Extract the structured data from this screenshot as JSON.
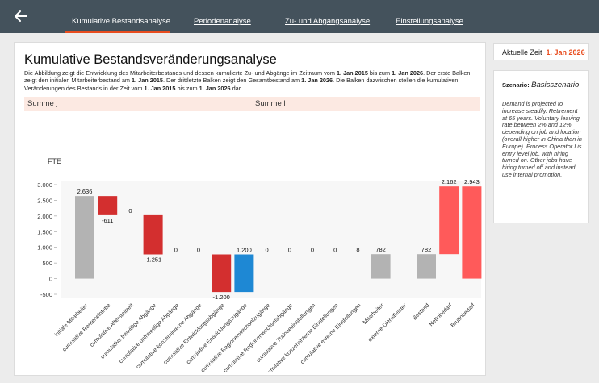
{
  "nav": {
    "tabs": [
      {
        "label": "Kumulative Bestandsanalyse",
        "active": true
      },
      {
        "label": "Periodenanalyse",
        "active": false
      },
      {
        "label": "Zu- und Abgangsanalyse",
        "active": false
      },
      {
        "label": "Einstellungsanalyse",
        "active": false
      }
    ]
  },
  "main": {
    "title": "Kumulative Bestandsveränderungsanalyse",
    "description_parts": [
      {
        "t": "Die Abbildung zeigt die Entwicklung des Mitarbeiterbestands und dessen kumulierte Zu- und Abgänge im Zeitraum vom ",
        "b": false
      },
      {
        "t": "1. Jan 2015",
        "b": true
      },
      {
        "t": " bis zum ",
        "b": false
      },
      {
        "t": "1. Jan 2026",
        "b": true
      },
      {
        "t": ". Der erste Balken zeigt den initialen Mitarbeiterbestand am ",
        "b": false
      },
      {
        "t": "1. Jan 2015",
        "b": true
      },
      {
        "t": ". Der drittletzte Balken zeigt den Gesamtbestand am ",
        "b": false
      },
      {
        "t": "1. Jan 2026",
        "b": true
      },
      {
        "t": ". Die Balken dazwischen stellen die kumulativen Veränderungen des Bestands in der Zeit vom ",
        "b": false
      },
      {
        "t": "1. Jan 2015",
        "b": true
      },
      {
        "t": " bis zum ",
        "b": false
      },
      {
        "t": "1. Jan 2026",
        "b": true
      },
      {
        "t": " dar.",
        "b": false
      }
    ],
    "sum_left": "Summe j",
    "sum_right": "Summe l"
  },
  "side": {
    "time_label": "Aktuelle Zeit",
    "time_value": "1. Jan 2026",
    "scenario_label": "Szenario:",
    "scenario_name": "Basisszenario",
    "scenario_text": "Demand is projected to increase steadily. Retirement at 65 years. Voluntary leaving rate between 2% and 12% depending on job and location (overall higher in China than in Europe). Process Operator I is entry level job, with hiring turned on. Other jobs have hiring turned off and instead use internal promotion."
  },
  "colors": {
    "gray": "#b3b3b3",
    "red": "#d32f2f",
    "blue": "#1e88d4",
    "salmon": "#ff5a5a",
    "accent": "#e84c1e"
  },
  "chart_data": {
    "type": "bar",
    "subtype": "waterfall",
    "ylabel": "FTE",
    "ylim": [
      -500,
      3000
    ],
    "yticks": [
      3000,
      2500,
      2000,
      1500,
      1000,
      500,
      0,
      -500
    ],
    "ytick_labels": [
      "3.000",
      "2.500",
      "2.000",
      "1.500",
      "1.000",
      "500",
      "0",
      "-500"
    ],
    "grid": false,
    "bars": [
      {
        "category": "initiale Mitarbeiter",
        "start": 0,
        "end": 2636,
        "label": "2.636",
        "color": "gray"
      },
      {
        "category": "cumulative Renteneintritte",
        "start": 2636,
        "end": 2025,
        "label": "-611",
        "color": "red"
      },
      {
        "category": "cumulative Altersteilzeit",
        "start": 2025,
        "end": 2025,
        "label": "0",
        "color": "red"
      },
      {
        "category": "cumulative freiwillige Abgänge",
        "start": 2025,
        "end": 774,
        "label": "-1.251",
        "color": "red"
      },
      {
        "category": "cumulative unfreiwillige Abgänge",
        "start": 774,
        "end": 774,
        "label": "0",
        "color": "red"
      },
      {
        "category": "cumulative konzerninterne Abgänge",
        "start": 774,
        "end": 774,
        "label": "0",
        "color": "red"
      },
      {
        "category": "cumulative Entwicklungsabgänge",
        "start": 774,
        "end": -426,
        "label": "-1.200",
        "color": "red"
      },
      {
        "category": "cumulative Entwicklungszugänge",
        "start": -426,
        "end": 774,
        "label": "1.200",
        "color": "blue"
      },
      {
        "category": "cumulative Regionenwechselzugänge",
        "start": 774,
        "end": 774,
        "label": "0",
        "color": "blue"
      },
      {
        "category": "cumulative Regionenwechselabgänge",
        "start": 774,
        "end": 774,
        "label": "0",
        "color": "blue"
      },
      {
        "category": "cumulative Traineeeinstellungen",
        "start": 774,
        "end": 774,
        "label": "0",
        "color": "blue"
      },
      {
        "category": "cumulative konzerninterne Einstellungen",
        "start": 774,
        "end": 774,
        "label": "0",
        "color": "blue"
      },
      {
        "category": "cumulative externe Einstellungen",
        "start": 774,
        "end": 782,
        "label": "8",
        "color": "blue"
      },
      {
        "category": "Mitarbeiter",
        "start": 0,
        "end": 782,
        "label": "782",
        "color": "gray"
      },
      {
        "category": "externe Dienstleister",
        "start": 782,
        "end": 782,
        "label": "",
        "color": "gray"
      },
      {
        "category": "Bestand",
        "start": 0,
        "end": 782,
        "label": "782",
        "color": "gray"
      },
      {
        "category": "Nettobedarf",
        "start": 782,
        "end": 2944,
        "label": "2.162",
        "color": "salmon"
      },
      {
        "category": "Bruttobedarf",
        "start": 0,
        "end": 2943,
        "label": "2.943",
        "color": "salmon"
      }
    ]
  }
}
